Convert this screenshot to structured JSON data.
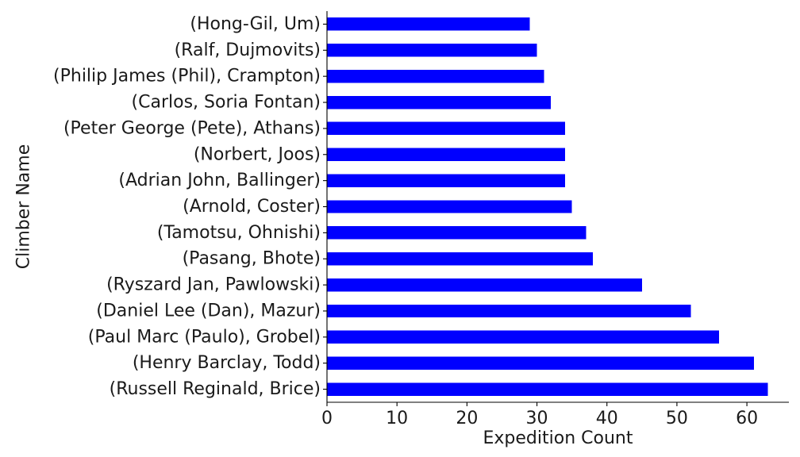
{
  "chart_data": {
    "type": "bar",
    "orientation": "horizontal",
    "title": "",
    "xlabel": "Expedition Count",
    "ylabel": "Climber Name",
    "categories": [
      "(Russell Reginald, Brice)",
      "(Henry Barclay, Todd)",
      "(Paul Marc (Paulo), Grobel)",
      "(Daniel Lee (Dan), Mazur)",
      "(Ryszard Jan, Pawlowski)",
      "(Pasang, Bhote)",
      "(Tamotsu, Ohnishi)",
      "(Arnold, Coster)",
      "(Adrian John, Ballinger)",
      "(Norbert, Joos)",
      "(Peter George (Pete), Athans)",
      "(Carlos, Soria Fontan)",
      "(Philip James (Phil), Crampton)",
      "(Ralf, Dujmovits)",
      "(Hong-Gil, Um)"
    ],
    "values": [
      63,
      61,
      56,
      52,
      45,
      38,
      37,
      35,
      34,
      34,
      34,
      32,
      31,
      30,
      29
    ],
    "xlim": [
      0,
      66
    ],
    "xticks": [
      0,
      10,
      20,
      30,
      40,
      50,
      60
    ],
    "bar_color": "#0000ff",
    "grid": false,
    "legend": "none"
  }
}
